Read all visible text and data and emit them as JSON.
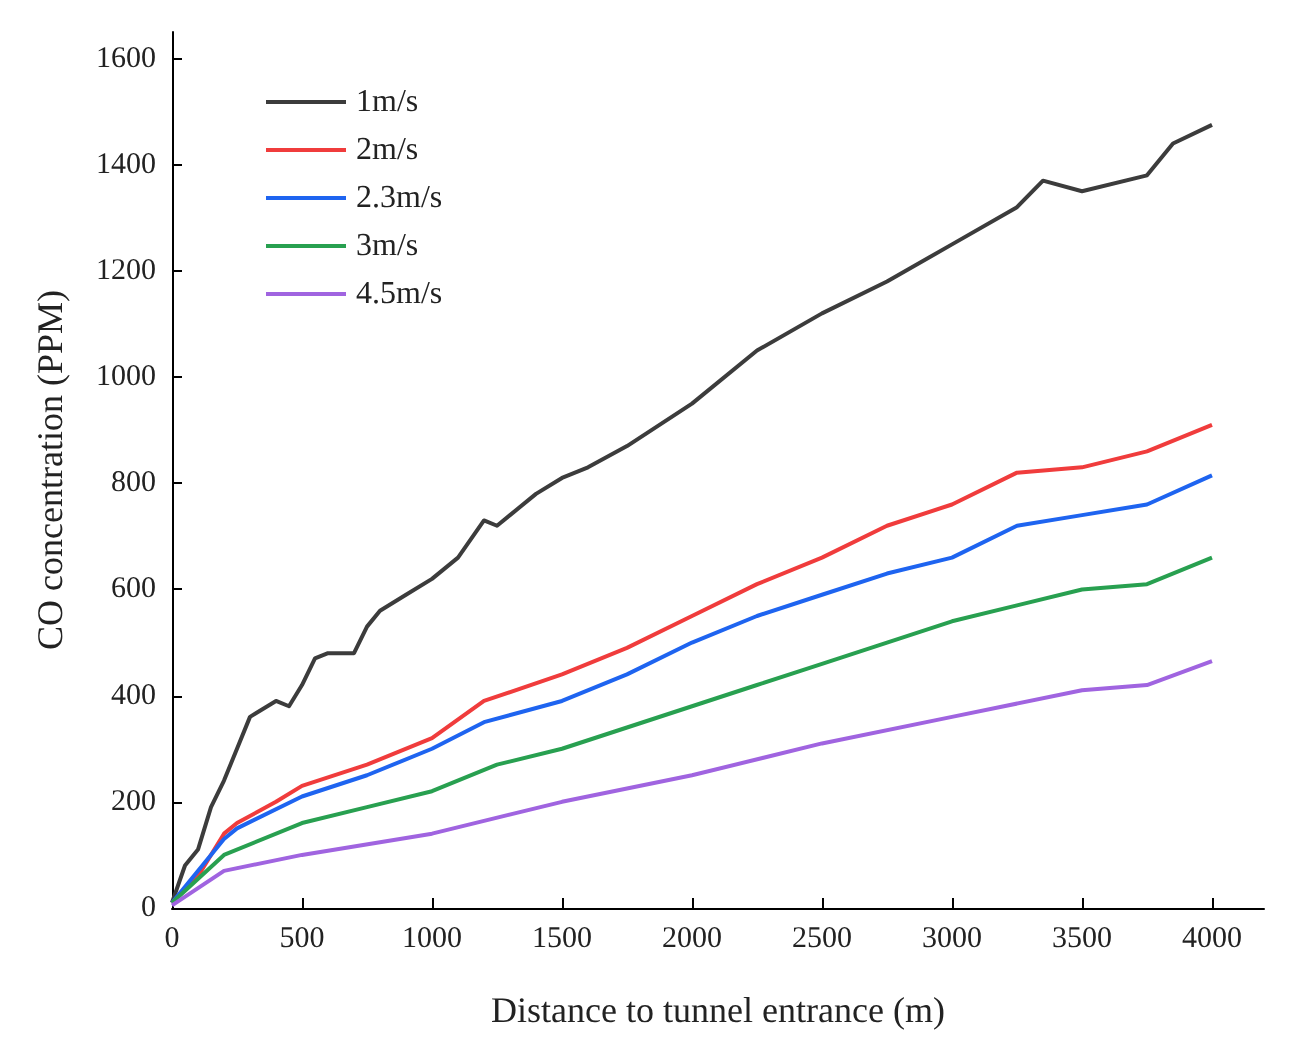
{
  "chart_data": {
    "type": "line",
    "xlabel": "Distance to tunnel entrance (m)",
    "ylabel": "CO concentration (PPM)",
    "xlim": [
      0,
      4200
    ],
    "ylim": [
      0,
      1650
    ],
    "xticks": [
      0,
      500,
      1000,
      1500,
      2000,
      2500,
      3000,
      3500,
      4000
    ],
    "yticks": [
      0,
      200,
      400,
      600,
      800,
      1000,
      1200,
      1400,
      1600
    ],
    "grid": false,
    "legend": "top left",
    "marker": "none",
    "line_style": "solid",
    "series": [
      {
        "name": "1m/s",
        "color": "#3c3c3c",
        "x": [
          0,
          50,
          100,
          150,
          200,
          250,
          300,
          400,
          450,
          500,
          550,
          600,
          700,
          750,
          800,
          900,
          1000,
          1100,
          1200,
          1250,
          1300,
          1400,
          1500,
          1600,
          1750,
          2000,
          2250,
          2500,
          2750,
          3000,
          3250,
          3350,
          3500,
          3750,
          3850,
          4000
        ],
        "values": [
          10,
          80,
          110,
          190,
          240,
          300,
          360,
          390,
          380,
          420,
          470,
          480,
          480,
          530,
          560,
          590,
          620,
          660,
          730,
          720,
          740,
          780,
          810,
          830,
          870,
          950,
          1050,
          1120,
          1180,
          1250,
          1320,
          1370,
          1350,
          1380,
          1440,
          1475
        ]
      },
      {
        "name": "2m/s",
        "color": "#f03c3c",
        "x": [
          0,
          100,
          200,
          250,
          400,
          500,
          750,
          1000,
          1200,
          1500,
          1750,
          2000,
          2250,
          2500,
          2750,
          3000,
          3250,
          3500,
          3750,
          4000
        ],
        "values": [
          10,
          60,
          140,
          160,
          200,
          230,
          270,
          320,
          390,
          440,
          490,
          550,
          610,
          660,
          720,
          760,
          820,
          830,
          860,
          910
        ]
      },
      {
        "name": "2.3m/s",
        "color": "#1e64f0",
        "x": [
          0,
          200,
          250,
          500,
          750,
          1000,
          1200,
          1500,
          1750,
          2000,
          2250,
          2500,
          2750,
          3000,
          3250,
          3500,
          3750,
          4000
        ],
        "values": [
          10,
          130,
          150,
          210,
          250,
          300,
          350,
          390,
          440,
          500,
          550,
          590,
          630,
          660,
          720,
          740,
          760,
          815
        ]
      },
      {
        "name": "3m/s",
        "color": "#28a050",
        "x": [
          0,
          200,
          500,
          750,
          1000,
          1250,
          1500,
          1750,
          2000,
          2250,
          2500,
          2750,
          3000,
          3250,
          3500,
          3750,
          4000
        ],
        "values": [
          10,
          100,
          160,
          190,
          220,
          270,
          300,
          340,
          380,
          420,
          460,
          500,
          540,
          570,
          600,
          610,
          660
        ]
      },
      {
        "name": "4.5m/s",
        "color": "#a064e0",
        "x": [
          0,
          200,
          500,
          1000,
          1500,
          2000,
          2500,
          3000,
          3500,
          3750,
          4000
        ],
        "values": [
          5,
          70,
          100,
          140,
          200,
          250,
          310,
          360,
          410,
          420,
          465
        ]
      }
    ]
  }
}
